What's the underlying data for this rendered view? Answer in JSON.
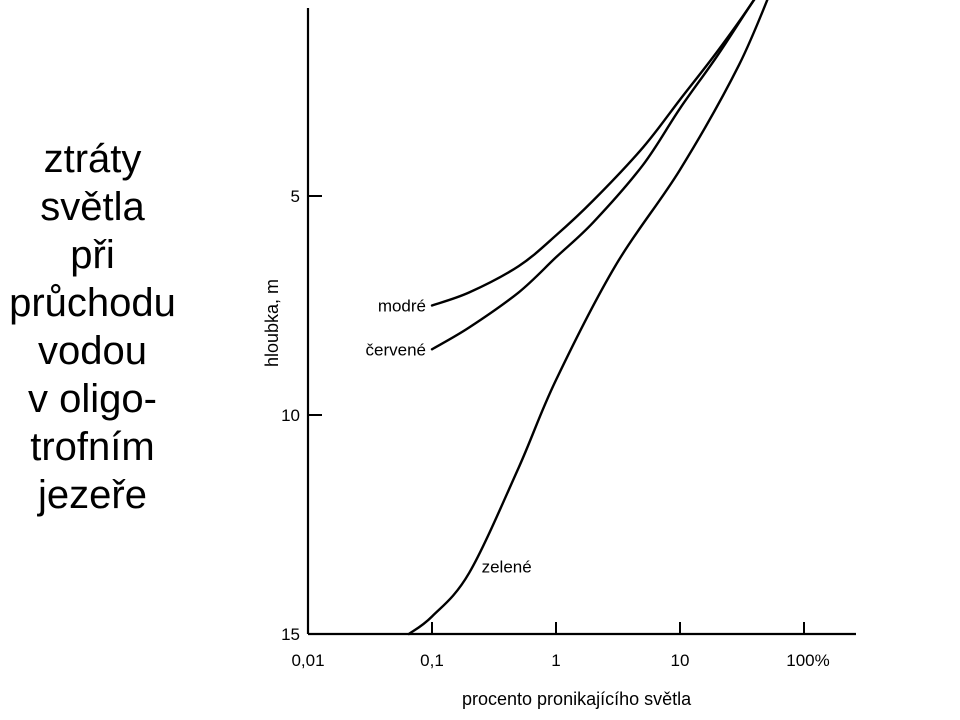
{
  "slide": {
    "title_lines": [
      "ztráty",
      "světla",
      "při",
      "průchodu",
      "vodou",
      "v oligo-",
      "trofním",
      "jezeře"
    ]
  },
  "chart_data": {
    "type": "line",
    "x_scale": "log",
    "y_inverted": true,
    "xlabel": "procento pronikajícího světla",
    "ylabel": "hloubka, m",
    "xlim": [
      0.01,
      100
    ],
    "ylim": [
      0,
      15
    ],
    "x_ticks": [
      {
        "value": 0.01,
        "label": "0,01"
      },
      {
        "value": 0.1,
        "label": "0,1"
      },
      {
        "value": 1,
        "label": "1"
      },
      {
        "value": 10,
        "label": "10"
      },
      {
        "value": 100,
        "label": "100%"
      }
    ],
    "y_ticks": [
      {
        "value": 5,
        "label": "5"
      },
      {
        "value": 10,
        "label": "10"
      },
      {
        "value": 15,
        "label": "15"
      }
    ],
    "grid": false,
    "legend": "none",
    "series": [
      {
        "name": "modré",
        "x": [
          0.1,
          0.2,
          0.5,
          1.0,
          2.0,
          5.0,
          10,
          20,
          40,
          50
        ],
        "y": [
          7.5,
          7.2,
          6.6,
          5.9,
          5.1,
          3.9,
          2.8,
          1.7,
          0.5,
          0.0
        ]
      },
      {
        "name": "červené",
        "x": [
          0.1,
          0.2,
          0.5,
          1.0,
          2.0,
          5.0,
          10,
          20,
          40,
          55
        ],
        "y": [
          8.5,
          8.0,
          7.2,
          6.4,
          5.6,
          4.3,
          3.0,
          1.8,
          0.5,
          0.0
        ]
      },
      {
        "name": "zelené",
        "x": [
          0.065,
          0.1,
          0.2,
          0.5,
          1.0,
          3.0,
          10,
          30,
          60
        ],
        "y": [
          15.0,
          14.6,
          13.6,
          11.2,
          9.2,
          6.6,
          4.4,
          2.0,
          0.0
        ]
      }
    ]
  }
}
